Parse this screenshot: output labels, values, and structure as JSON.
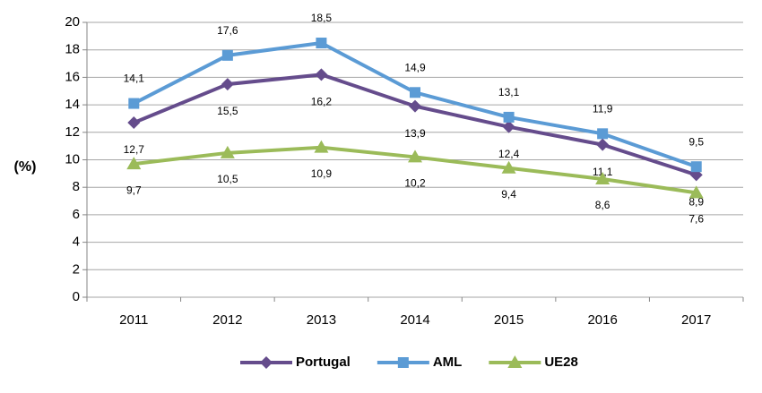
{
  "chart_data": {
    "type": "line",
    "y_label": "(%)",
    "categories": [
      "2011",
      "2012",
      "2013",
      "2014",
      "2015",
      "2016",
      "2017"
    ],
    "series": [
      {
        "name": "Portugal",
        "color": "#654c8c",
        "marker": "diamond",
        "values": [
          12.7,
          15.5,
          16.2,
          13.9,
          12.4,
          11.1,
          8.9
        ],
        "value_labels": [
          "12,7",
          "15,5",
          "16,2",
          "13,9",
          "12,4",
          "11,1",
          "8,9"
        ]
      },
      {
        "name": "AML",
        "color": "#5b9bd5",
        "marker": "square",
        "values": [
          14.1,
          17.6,
          18.5,
          14.9,
          13.1,
          11.9,
          9.5
        ],
        "value_labels": [
          "14,1",
          "17,6",
          "18,5",
          "14,9",
          "13,1",
          "11,9",
          "9,5"
        ]
      },
      {
        "name": "UE28",
        "color": "#9bbb59",
        "marker": "triangle",
        "values": [
          9.7,
          10.5,
          10.9,
          10.2,
          9.4,
          8.6,
          7.6
        ],
        "value_labels": [
          "9,7",
          "10,5",
          "10,9",
          "10,2",
          "9,4",
          "8,6",
          "7,6"
        ]
      }
    ],
    "ylim": [
      0,
      20
    ],
    "yticks": [
      0,
      2,
      4,
      6,
      8,
      10,
      12,
      14,
      16,
      18,
      20
    ],
    "grid": true,
    "legend": "bottom"
  }
}
